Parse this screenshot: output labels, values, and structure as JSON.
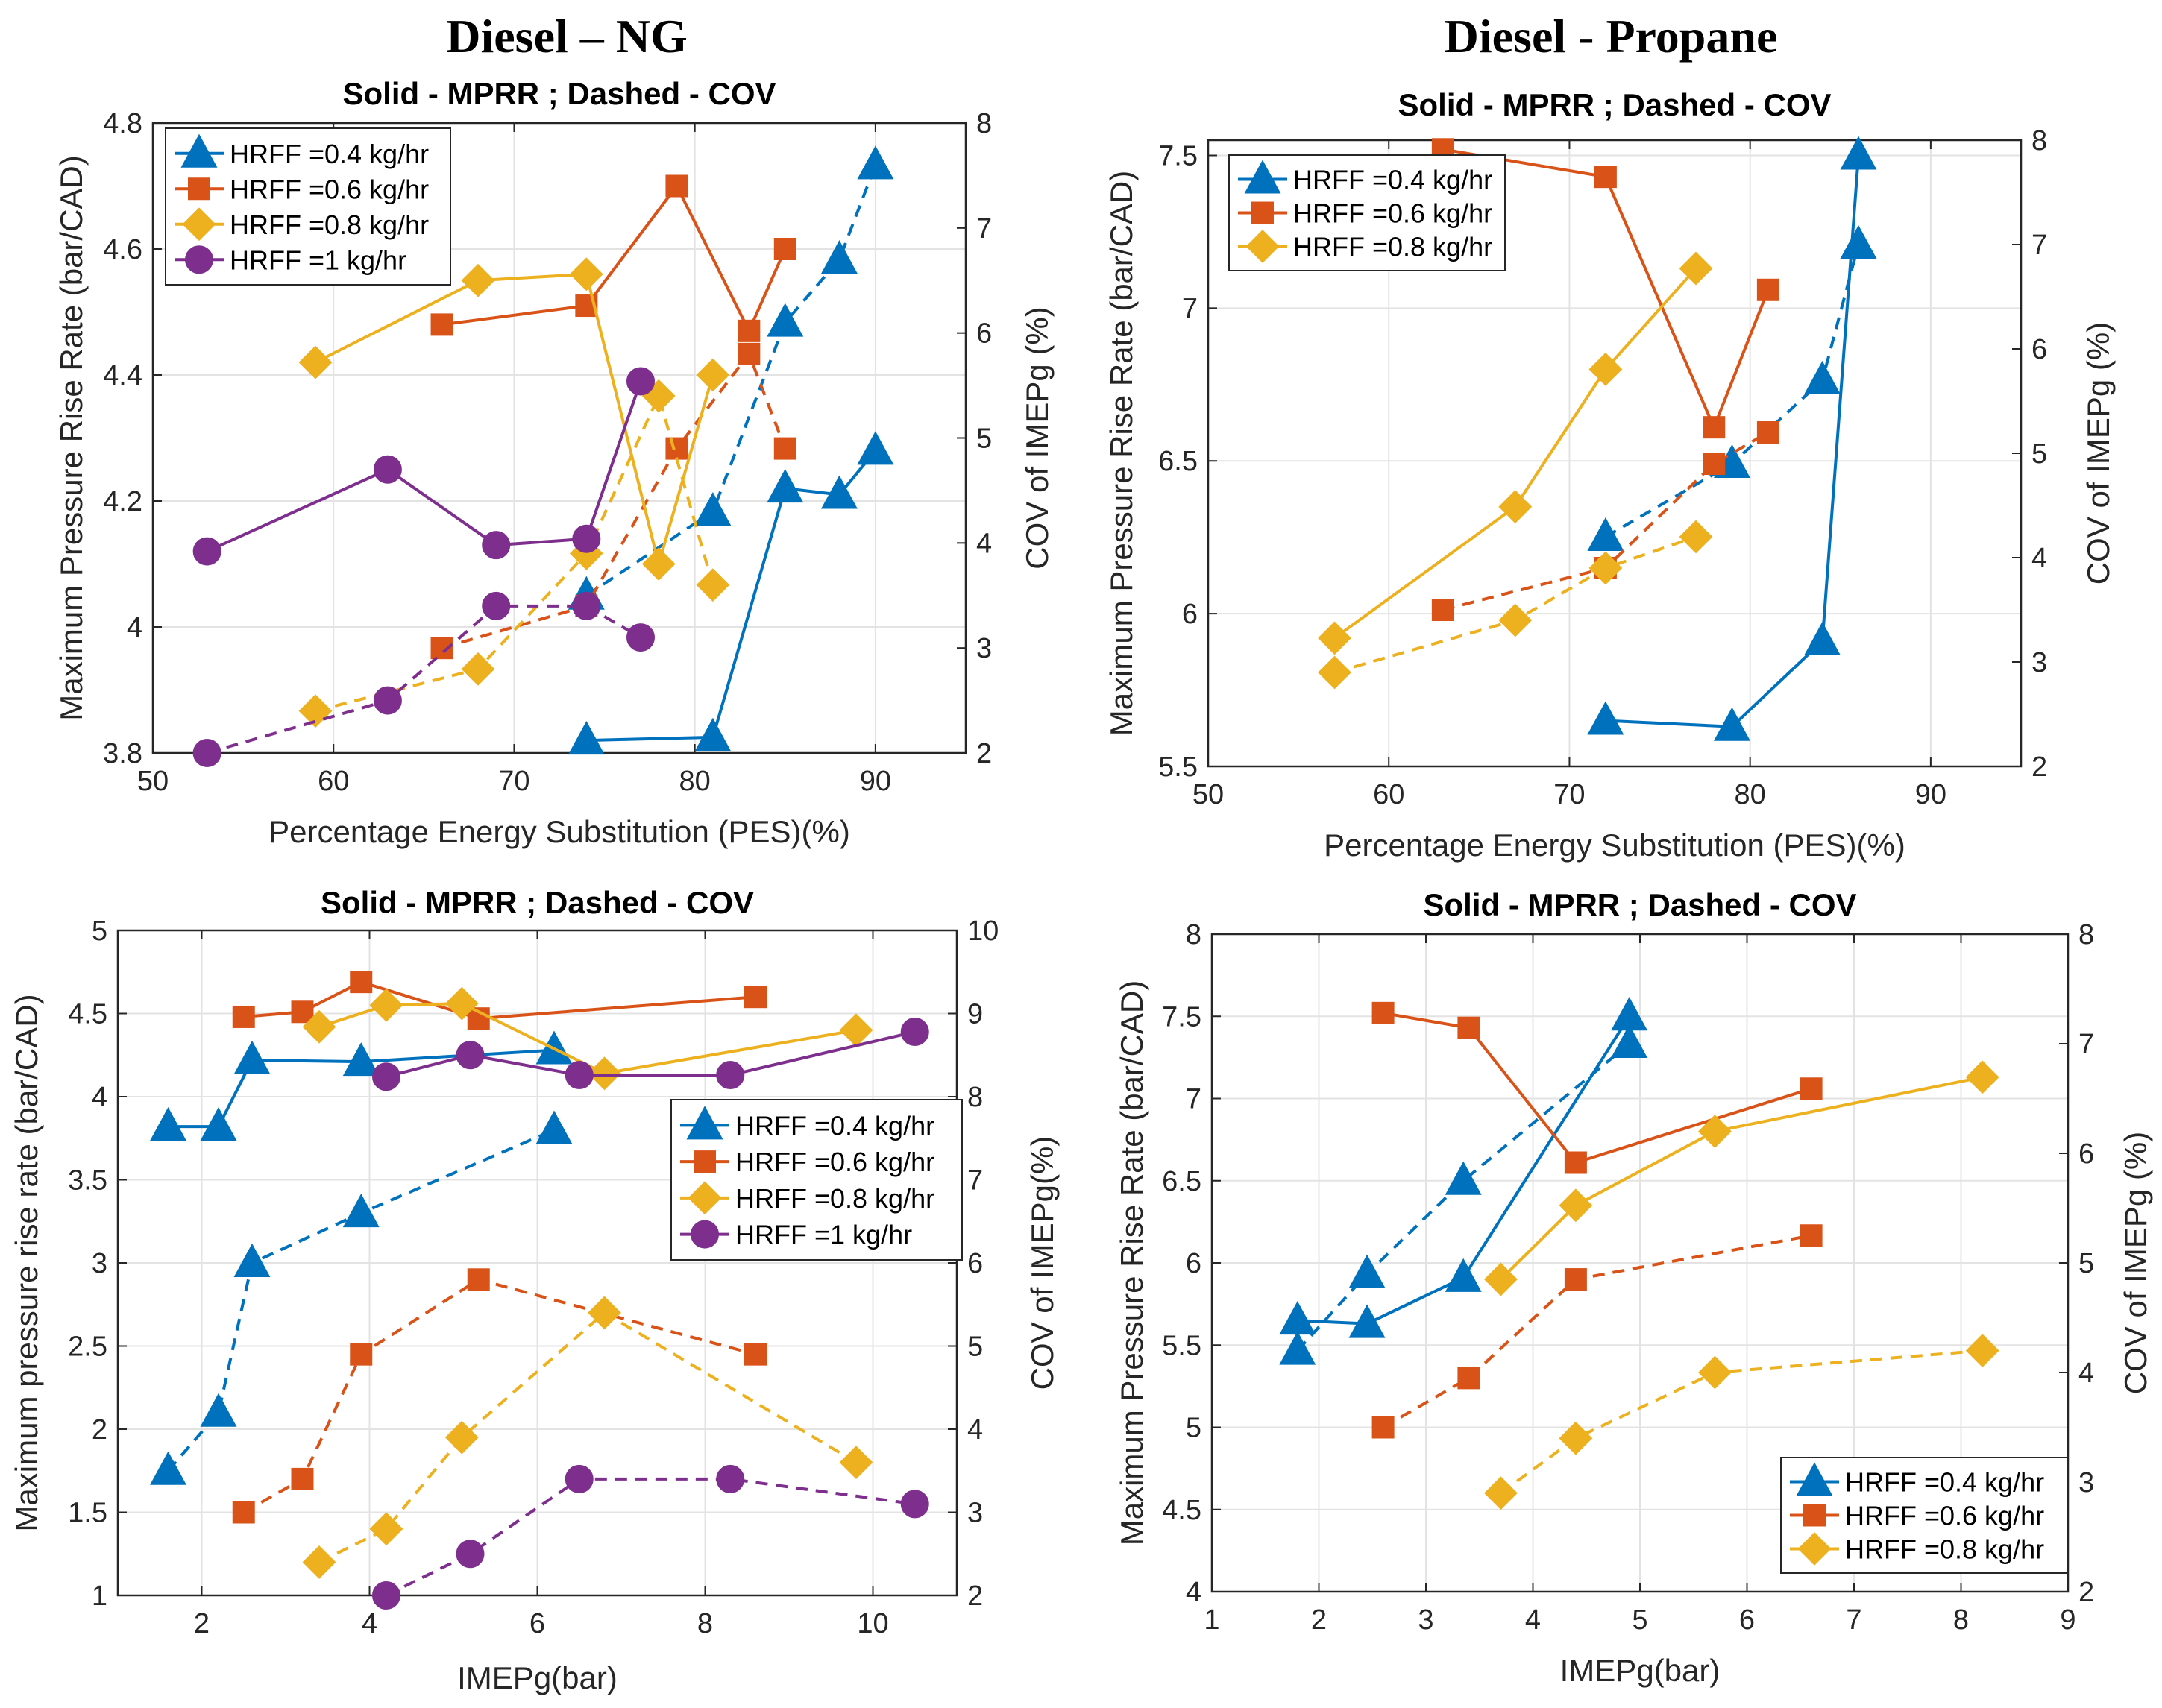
{
  "headings": {
    "left": "Diesel – NG",
    "right": "Diesel - Propane"
  },
  "colors": {
    "s1": "#0072BD",
    "s2": "#D95319",
    "s3": "#EDB120",
    "s4": "#7E2F8E"
  },
  "chart_data": [
    {
      "id": "ng-pes",
      "type": "line",
      "title": "Solid - MPRR ; Dashed - COV",
      "xlabel": "Percentage Energy Substitution (PES)(%)",
      "ylabel": "Maximum Pressure Rise Rate (bar/CAD)",
      "y2label": "COV of IMEPg (%)",
      "xlim": [
        50,
        95
      ],
      "xticks": [
        50,
        60,
        70,
        80,
        90
      ],
      "ylim": [
        3.8,
        4.8
      ],
      "yticks": [
        3.8,
        4.0,
        4.2,
        4.4,
        4.6,
        4.8
      ],
      "yticklabels": [
        "3.8",
        "4",
        "4.2",
        "4.4",
        "4.6",
        "4.8"
      ],
      "y2lim": [
        2,
        8
      ],
      "y2ticks": [
        2,
        3,
        4,
        5,
        6,
        7,
        8
      ],
      "legend_position": "top-left",
      "series": [
        {
          "name": "HRFF =0.4 kg/hr",
          "marker": "triangle",
          "color": "#0072BD",
          "x": [
            74,
            81,
            85,
            88,
            90
          ],
          "mprr": [
            3.82,
            3.825,
            4.22,
            4.21,
            4.28
          ],
          "cov": [
            3.5,
            4.3,
            6.1,
            6.7,
            7.6
          ]
        },
        {
          "name": "HRFF =0.6 kg/hr",
          "marker": "square",
          "color": "#D95319",
          "x": [
            66,
            74,
            79,
            83,
            85
          ],
          "mprr": [
            4.48,
            4.51,
            4.7,
            4.47,
            4.6
          ],
          "cov": [
            3.0,
            3.4,
            4.9,
            5.8,
            4.9
          ]
        },
        {
          "name": "HRFF =0.8 kg/hr",
          "marker": "diamond",
          "color": "#EDB120",
          "x": [
            59,
            68,
            74,
            78,
            81
          ],
          "mprr": [
            4.42,
            4.55,
            4.56,
            4.1,
            4.4
          ],
          "cov": [
            2.4,
            2.8,
            3.9,
            5.4,
            3.6
          ]
        },
        {
          "name": "HRFF =1 kg/hr",
          "marker": "circle",
          "color": "#7E2F8E",
          "x": [
            53,
            63,
            69,
            74,
            77
          ],
          "mprr": [
            4.12,
            4.25,
            4.13,
            4.14,
            4.39
          ],
          "cov": [
            2.0,
            2.5,
            3.4,
            3.4,
            3.1
          ]
        }
      ]
    },
    {
      "id": "propane-pes",
      "type": "line",
      "title": "Solid - MPRR ; Dashed - COV",
      "xlabel": "Percentage Energy Substitution (PES)(%)",
      "ylabel": "Maximum Pressure Rise Rate (bar/CAD)",
      "y2label": "COV of IMEPg (%)",
      "xlim": [
        50,
        95
      ],
      "xticks": [
        50,
        60,
        70,
        80,
        90
      ],
      "ylim": [
        5.5,
        7.55
      ],
      "yticks": [
        5.5,
        6.0,
        6.5,
        7.0,
        7.5
      ],
      "yticklabels": [
        "5.5",
        "6",
        "6.5",
        "7",
        "7.5"
      ],
      "y2lim": [
        2,
        8
      ],
      "y2ticks": [
        2,
        3,
        4,
        5,
        6,
        7,
        8
      ],
      "legend_position": "top-left",
      "series": [
        {
          "name": "HRFF =0.4 kg/hr",
          "marker": "triangle",
          "color": "#0072BD",
          "x": [
            72,
            79,
            84,
            86
          ],
          "mprr": [
            5.65,
            5.63,
            5.91,
            7.5
          ],
          "cov": [
            4.2,
            4.9,
            5.7,
            7.0
          ]
        },
        {
          "name": "HRFF =0.6 kg/hr",
          "marker": "square",
          "color": "#D95319",
          "x": [
            63,
            72,
            78,
            81
          ],
          "mprr": [
            7.52,
            7.43,
            6.61,
            7.06
          ],
          "cov": [
            3.5,
            3.9,
            4.9,
            5.2
          ]
        },
        {
          "name": "HRFF =0.8 kg/hr",
          "marker": "diamond",
          "color": "#EDB120",
          "x": [
            57,
            67,
            72,
            77
          ],
          "mprr": [
            5.92,
            6.35,
            6.8,
            7.13
          ],
          "cov": [
            2.9,
            3.4,
            3.9,
            4.2
          ]
        }
      ]
    },
    {
      "id": "ng-imep",
      "type": "line",
      "title": "Solid - MPRR ; Dashed - COV",
      "xlabel": "IMEPg(bar)",
      "ylabel": "Maximum pressure rise rate (bar/CAD)",
      "y2label": "COV of IMEPg(%)",
      "xlim": [
        1,
        11
      ],
      "xticks": [
        2,
        4,
        6,
        8,
        10
      ],
      "ylim": [
        1,
        5
      ],
      "yticks": [
        1,
        1.5,
        2,
        2.5,
        3,
        3.5,
        4,
        4.5,
        5
      ],
      "yticklabels": [
        "1",
        "1.5",
        "2",
        "2.5",
        "3",
        "3.5",
        "4",
        "4.5",
        "5"
      ],
      "y2lim": [
        2,
        10
      ],
      "y2ticks": [
        2,
        3,
        4,
        5,
        6,
        7,
        8,
        9,
        10
      ],
      "legend_position": "middle-right",
      "series": [
        {
          "name": "HRFF =0.4 kg/hr",
          "marker": "triangle",
          "color": "#0072BD",
          "x": [
            1.6,
            2.2,
            2.6,
            3.9,
            6.2
          ],
          "mprr": [
            3.82,
            3.82,
            4.22,
            4.21,
            4.28
          ],
          "cov": [
            3.5,
            4.2,
            6.0,
            6.6,
            7.6
          ]
        },
        {
          "name": "HRFF =0.6 kg/hr",
          "marker": "square",
          "color": "#D95319",
          "x": [
            2.5,
            3.2,
            3.9,
            5.3,
            8.6
          ],
          "mprr": [
            4.48,
            4.51,
            4.69,
            4.47,
            4.6
          ],
          "cov": [
            3.0,
            3.4,
            4.9,
            5.8,
            4.9
          ]
        },
        {
          "name": "HRFF =0.8 kg/hr",
          "marker": "diamond",
          "color": "#EDB120",
          "x": [
            3.4,
            4.2,
            5.1,
            6.8,
            9.8
          ],
          "mprr": [
            4.42,
            4.55,
            4.56,
            4.14,
            4.4
          ],
          "cov": [
            2.4,
            2.8,
            3.9,
            5.4,
            3.6
          ]
        },
        {
          "name": "HRFF =1 kg/hr",
          "marker": "circle",
          "color": "#7E2F8E",
          "x": [
            4.2,
            5.2,
            6.5,
            8.3,
            10.5
          ],
          "mprr": [
            4.12,
            4.25,
            4.13,
            4.13,
            4.39
          ],
          "cov": [
            2.0,
            2.5,
            3.4,
            3.4,
            3.1
          ]
        }
      ]
    },
    {
      "id": "propane-imep",
      "type": "line",
      "title": "Solid - MPRR ; Dashed - COV",
      "xlabel": "IMEPg(bar)",
      "ylabel": "Maximum Pressure Rise Rate (bar/CAD)",
      "y2label": "COV of IMEPg (%)",
      "xlim": [
        1,
        9
      ],
      "xticks": [
        1,
        2,
        3,
        4,
        5,
        6,
        7,
        8,
        9
      ],
      "ylim": [
        4,
        8
      ],
      "yticks": [
        4,
        4.5,
        5,
        5.5,
        6,
        6.5,
        7,
        7.5,
        8
      ],
      "yticklabels": [
        "4",
        "4.5",
        "5",
        "5.5",
        "6",
        "6.5",
        "7",
        "7.5",
        "8"
      ],
      "y2lim": [
        2,
        8
      ],
      "y2ticks": [
        2,
        3,
        4,
        5,
        6,
        7,
        8
      ],
      "legend_position": "bottom-right",
      "series": [
        {
          "name": "HRFF =0.4 kg/hr",
          "marker": "triangle",
          "color": "#0072BD",
          "x": [
            1.8,
            2.45,
            3.35,
            4.9
          ],
          "mprr": [
            5.65,
            5.63,
            5.91,
            7.5
          ],
          "cov": [
            4.2,
            4.9,
            5.75,
            7.0
          ]
        },
        {
          "name": "HRFF =0.6 kg/hr",
          "marker": "square",
          "color": "#D95319",
          "x": [
            2.6,
            3.4,
            4.4,
            6.6
          ],
          "mprr": [
            7.52,
            7.43,
            6.61,
            7.06
          ],
          "cov": [
            3.5,
            3.95,
            4.85,
            5.25
          ]
        },
        {
          "name": "HRFF =0.8 kg/hr",
          "marker": "diamond",
          "color": "#EDB120",
          "x": [
            3.7,
            4.4,
            5.7,
            8.2
          ],
          "mprr": [
            5.9,
            6.35,
            6.8,
            7.13
          ],
          "cov": [
            2.9,
            3.4,
            4.0,
            4.2
          ]
        }
      ]
    }
  ]
}
